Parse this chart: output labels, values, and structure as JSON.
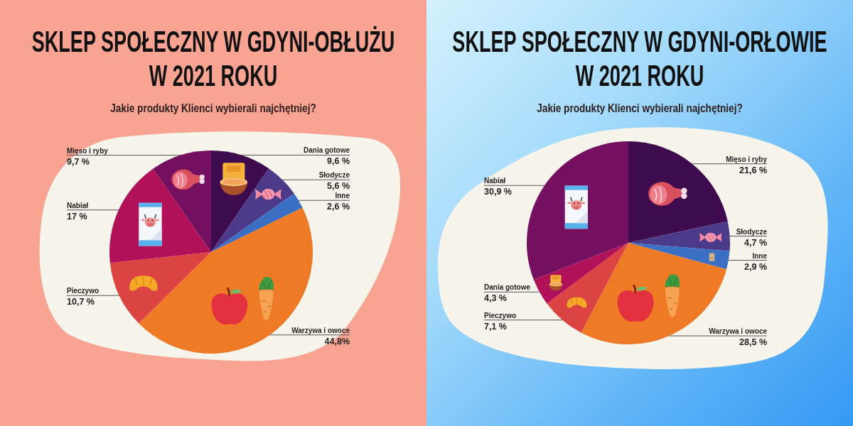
{
  "chart_data": [
    {
      "type": "pie",
      "title": "SKLEP SPOŁECZNY W GDYNI-OBŁUŻU W 2021 ROKU",
      "subtitle": "Jakie produkty Klienci wybierali najchętniej?",
      "categories": [
        "Dania gotowe",
        "Słodycze",
        "Inne",
        "Warzywa i owoce",
        "Pieczywo",
        "Nabiał",
        "Mięso i ryby"
      ],
      "values": [
        9.6,
        5.6,
        2.6,
        44.8,
        10.7,
        17,
        9.7
      ],
      "value_labels": [
        "9,6 %",
        "5,6 %",
        "2,6 %",
        "44,8%",
        "10,7 %",
        "17 %",
        "9,7 %"
      ],
      "colors": [
        "#3f0b4f",
        "#4b3a8a",
        "#3b6fc4",
        "#ef7a25",
        "#dc4444",
        "#b11158",
        "#750f5f"
      ]
    },
    {
      "type": "pie",
      "title": "SKLEP SPOŁECZNY W GDYNI-ORŁOWIE W 2021 ROKU",
      "subtitle": "Jakie produkty Klienci wybierali najchętniej?",
      "categories": [
        "Mięso i ryby",
        "Słodycze",
        "Inne",
        "Warzywa i owoce",
        "Pieczywo",
        "Dania gotowe",
        "Nabiał"
      ],
      "values": [
        21.6,
        4.7,
        2.9,
        28.5,
        7.1,
        4.3,
        30.9
      ],
      "value_labels": [
        "21,6 %",
        "4,7 %",
        "2,9 %",
        "28,5 %",
        "7,1 %",
        "4,3 %",
        "30,9 %"
      ],
      "colors": [
        "#3f0b4f",
        "#4b3a8a",
        "#3b6fc4",
        "#ef7a25",
        "#dc4444",
        "#b11158",
        "#750f5f"
      ]
    }
  ]
}
